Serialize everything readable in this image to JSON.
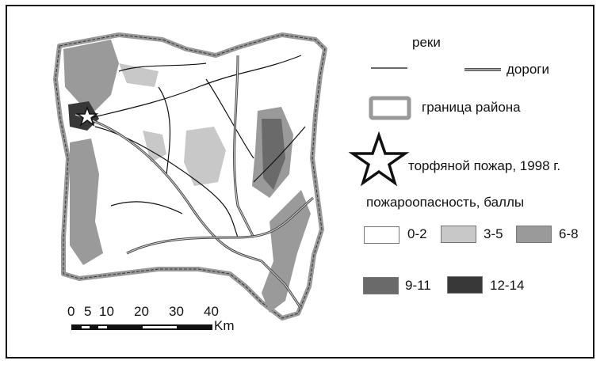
{
  "legend": {
    "rivers_label": "реки",
    "roads_label": "дороги",
    "boundary_label": "граница района",
    "fire_label": "торфяной пожар, 1998 г.",
    "hazard_title": "пожароопасность, баллы",
    "hazard_classes": [
      {
        "label": "0-2",
        "color": "#ffffff"
      },
      {
        "label": "3-5",
        "color": "#c8c8c8"
      },
      {
        "label": "6-8",
        "color": "#9a9a9a"
      },
      {
        "label": "9-11",
        "color": "#6a6a6a"
      },
      {
        "label": "12-14",
        "color": "#383838"
      }
    ]
  },
  "scale_bar": {
    "ticks": [
      "0",
      "5",
      "10",
      "20",
      "30",
      "40"
    ],
    "unit": "Km"
  }
}
